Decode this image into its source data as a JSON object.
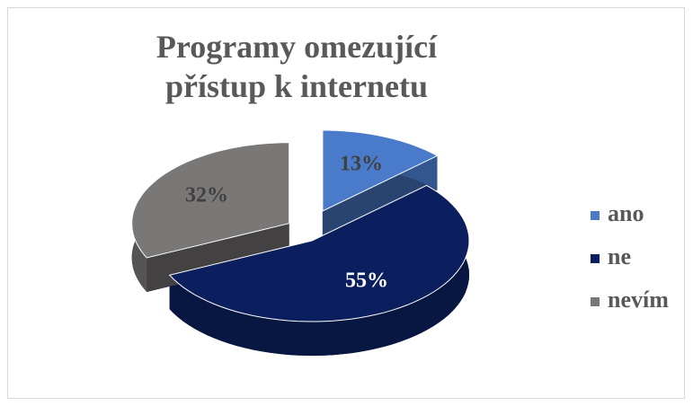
{
  "chart_data": {
    "type": "pie",
    "title": "Programy omezující přístup k internetu",
    "categories": [
      "ano",
      "ne",
      "nevím"
    ],
    "values": [
      13,
      55,
      32
    ],
    "value_labels": [
      "13%",
      "55%",
      "32%"
    ],
    "colors": [
      "#4a7bcb",
      "#0b1f5e",
      "#7a7777"
    ],
    "legend": "right"
  }
}
